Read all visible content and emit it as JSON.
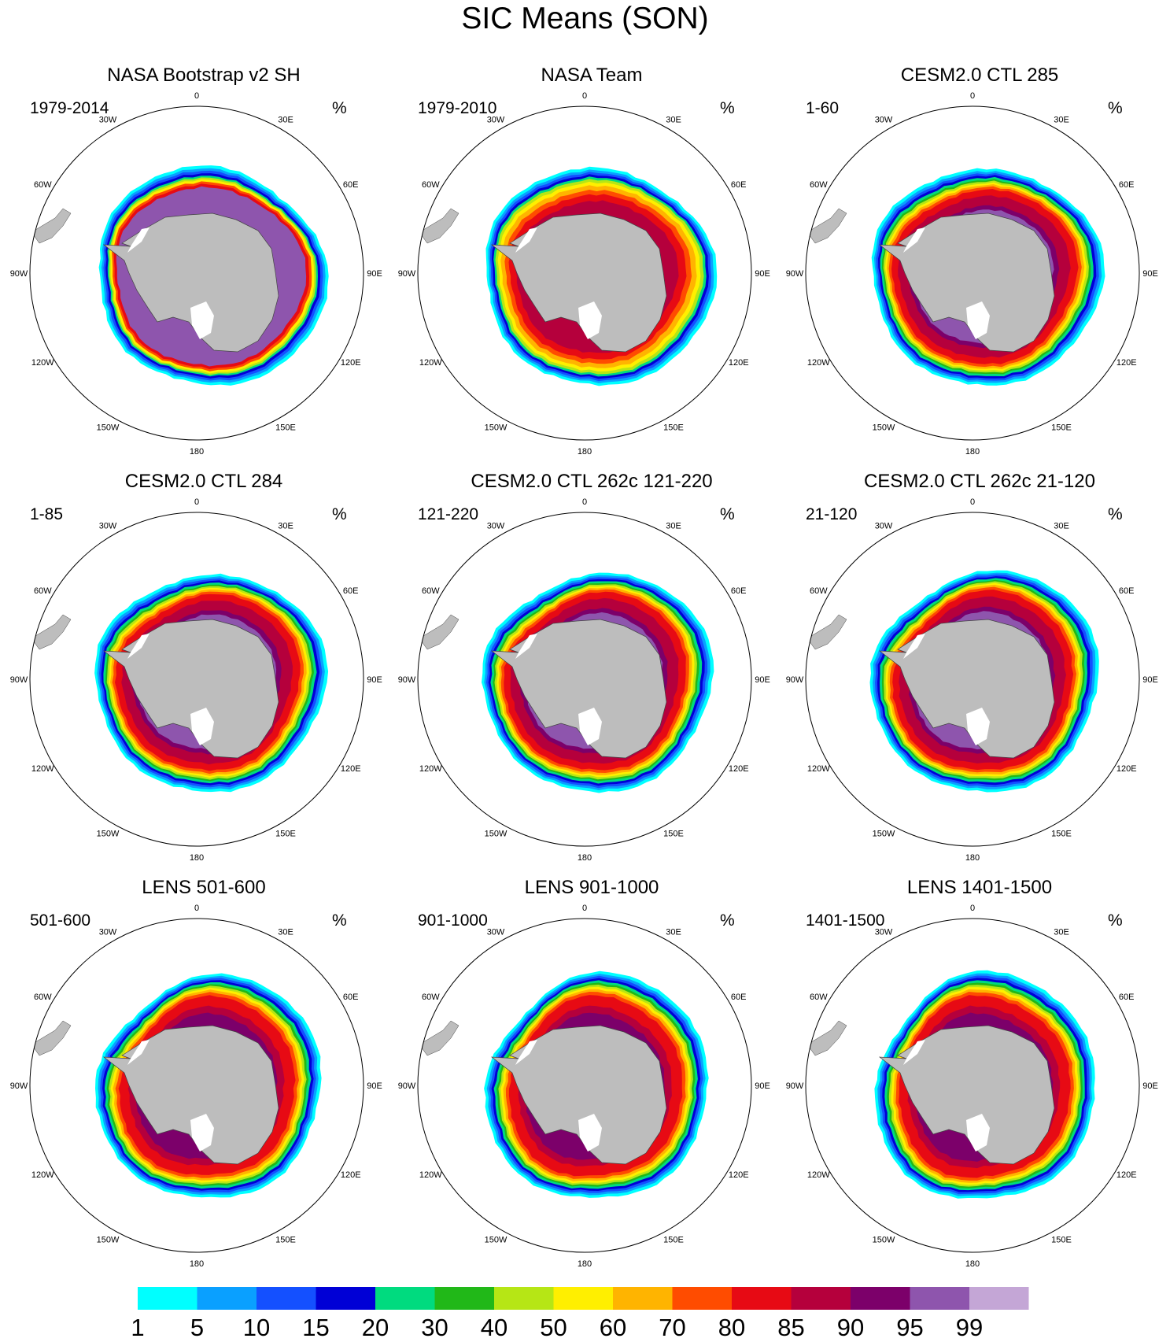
{
  "title": "SIC Means (SON)",
  "panels": [
    {
      "title": "NASA Bootstrap v2 SH",
      "period": "1979-2014",
      "units": "%",
      "style": "bootstrap"
    },
    {
      "title": "NASA Team",
      "period": "1979-2010",
      "units": "%",
      "style": "team"
    },
    {
      "title": "CESM2.0 CTL 285",
      "period": "1-60",
      "units": "%",
      "style": "model"
    },
    {
      "title": "CESM2.0 CTL 284",
      "period": "1-85",
      "units": "%",
      "style": "model"
    },
    {
      "title": "CESM2.0 CTL 262c 121-220",
      "period": "121-220",
      "units": "%",
      "style": "model"
    },
    {
      "title": "CESM2.0 CTL 262c 21-120",
      "period": "21-120",
      "units": "%",
      "style": "model"
    },
    {
      "title": "LENS 501-600",
      "period": "501-600",
      "units": "%",
      "style": "lens"
    },
    {
      "title": "LENS 901-1000",
      "period": "901-1000",
      "units": "%",
      "style": "lens"
    },
    {
      "title": "LENS 1401-1500",
      "period": "1401-1500",
      "units": "%",
      "style": "lens"
    }
  ],
  "longitude_labels": [
    "0",
    "30E",
    "60E",
    "90E",
    "120E",
    "150E",
    "180",
    "150W",
    "120W",
    "90W",
    "60W",
    "30W"
  ],
  "colorbar": {
    "labels": [
      "1",
      "5",
      "10",
      "15",
      "20",
      "30",
      "40",
      "50",
      "60",
      "70",
      "80",
      "85",
      "90",
      "95",
      "99"
    ],
    "colors": [
      "#00ffff",
      "#0aa0ff",
      "#1450ff",
      "#0000d6",
      "#00db7f",
      "#21b818",
      "#b6e615",
      "#ffef00",
      "#ffb400",
      "#ff4c00",
      "#e70a14",
      "#b5003c",
      "#7c006a",
      "#8e55ad",
      "#c4a6d6"
    ]
  },
  "colors": {
    "land": "#bdbdbd",
    "ice_shelf": "#ffffff",
    "frame": "#000000"
  }
}
